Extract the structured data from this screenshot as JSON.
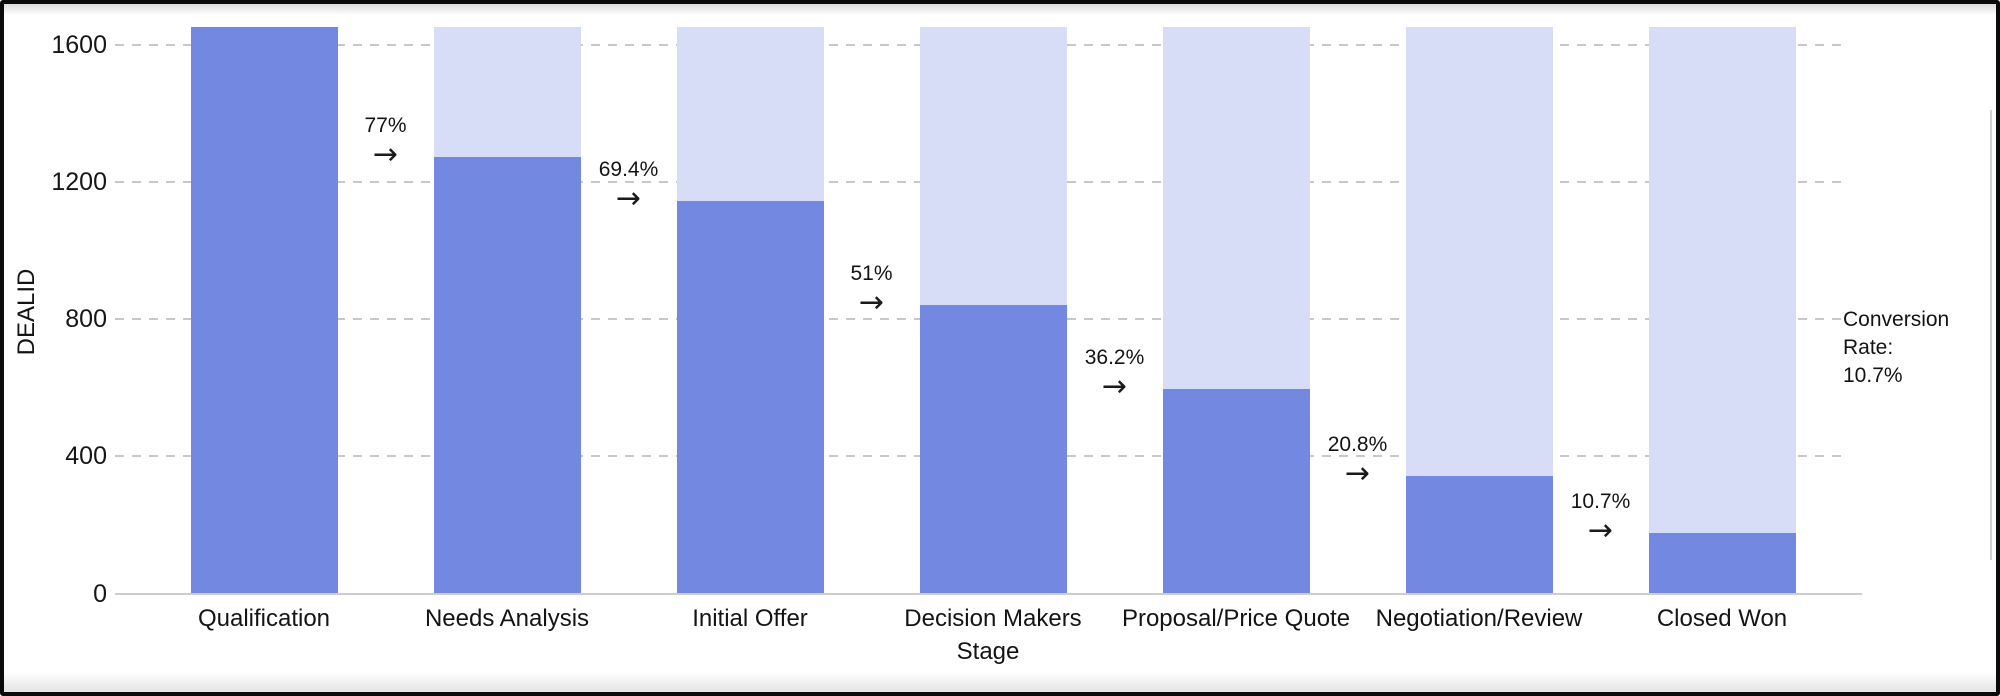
{
  "frame": {
    "background": "#ffffff",
    "border_color": "#0b0b0b"
  },
  "chart_data": {
    "type": "bar",
    "subtype": "funnel",
    "title": "",
    "xlabel": "Stage",
    "ylabel": "DEALID",
    "categories": [
      "Qualification",
      "Needs Analysis",
      "Initial Offer",
      "Decision Makers",
      "Proposal/Price Quote",
      "Negotiation/Review",
      "Closed Won"
    ],
    "values": [
      1650,
      1271,
      1145,
      842,
      597,
      343,
      177
    ],
    "bar_background_value": 1650,
    "conversion_labels": [
      "77%",
      "69.4%",
      "51%",
      "36.2%",
      "20.8%",
      "10.7%"
    ],
    "arrow_glyph": "→",
    "y_ticks": [
      0,
      400,
      800,
      1200,
      1600
    ],
    "ylim": [
      0,
      1650
    ],
    "grid": "horizontal dashed",
    "legend_position": "none",
    "annotation": {
      "line1": "Conversion Rate:",
      "line2": "10.7%"
    },
    "colors": {
      "bar": "#7389e1",
      "bar_background": "#d7ddf6",
      "gridline": "#c8c8c8",
      "axis_line": "#cdcdcd",
      "text": "#141414"
    }
  }
}
